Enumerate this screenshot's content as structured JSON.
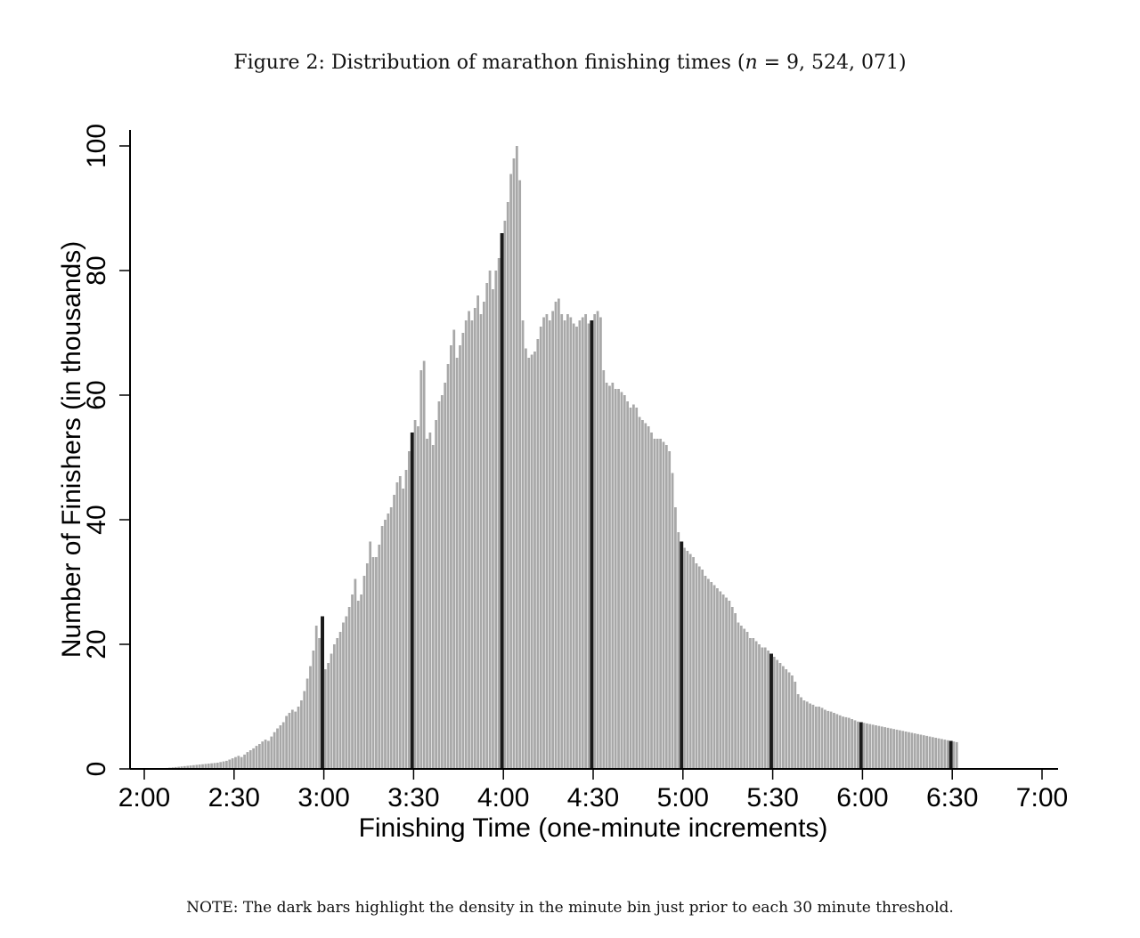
{
  "figure": {
    "title_prefix": "Figure 2: Distribution of marathon finishing times (",
    "title_math": "n",
    "title_suffix": " = 9, 524, 071)",
    "note": "NOTE: The dark bars highlight the density in the minute bin just prior to each 30 minute threshold."
  },
  "chart_data": {
    "type": "bar",
    "title": "Figure 2: Distribution of marathon finishing times (n = 9,524,071)",
    "xlabel": "Finishing Time (one-minute increments)",
    "ylabel": "Number of Finishers (in thousands)",
    "x_start_minutes": 120,
    "x_tick_labels": [
      "2:00",
      "2:30",
      "3:00",
      "3:30",
      "4:00",
      "4:30",
      "5:00",
      "5:30",
      "6:00",
      "6:30",
      "7:00"
    ],
    "y_ticks": [
      0,
      20,
      40,
      60,
      80,
      100
    ],
    "ylim": [
      0,
      100
    ],
    "grid": false,
    "colors": {
      "bar": "#a8a8a8",
      "highlight": "#1a1a1a"
    },
    "highlight_note": "dark bars = minute bin just prior to each 30 minute threshold",
    "values": [
      0.05,
      0.05,
      0.06,
      0.07,
      0.08,
      0.1,
      0.12,
      0.15,
      0.2,
      0.25,
      0.3,
      0.35,
      0.4,
      0.45,
      0.5,
      0.55,
      0.6,
      0.65,
      0.7,
      0.75,
      0.8,
      0.85,
      0.9,
      0.95,
      1.0,
      1.1,
      1.2,
      1.3,
      1.5,
      1.7,
      1.9,
      2.1,
      1.9,
      2.3,
      2.7,
      3.0,
      3.3,
      3.7,
      4.0,
      4.4,
      4.7,
      4.5,
      5.2,
      5.9,
      6.5,
      7.0,
      7.5,
      8.5,
      9.0,
      9.5,
      9.2,
      10.0,
      11.0,
      12.5,
      14.5,
      16.5,
      19.0,
      23.0,
      21.0,
      24.5,
      16.0,
      17.0,
      18.5,
      20.0,
      21.0,
      22.0,
      23.5,
      24.5,
      26.0,
      28.0,
      30.5,
      27.0,
      28.0,
      31.0,
      33.0,
      36.5,
      34.0,
      34.0,
      36.0,
      39.0,
      40.0,
      41.0,
      42.0,
      44.0,
      46.0,
      47.0,
      45.0,
      48.0,
      51.0,
      54.0,
      56.0,
      55.0,
      64.0,
      65.5,
      53.0,
      54.0,
      52.0,
      56.0,
      59.0,
      60.0,
      62.0,
      65.0,
      68.0,
      70.5,
      66.0,
      68.0,
      70.0,
      72.0,
      73.5,
      72.0,
      74.0,
      76.0,
      73.0,
      75.0,
      78.0,
      80.0,
      77.0,
      80.0,
      82.0,
      86.0,
      88.0,
      91.0,
      95.5,
      98.0,
      100.0,
      94.5,
      72.0,
      67.5,
      66.0,
      66.5,
      67.0,
      69.0,
      71.0,
      72.5,
      73.0,
      72.0,
      73.5,
      75.0,
      75.5,
      73.0,
      72.0,
      73.0,
      72.5,
      71.5,
      71.0,
      72.0,
      72.5,
      73.0,
      71.5,
      72.0,
      73.0,
      73.5,
      72.5,
      64.0,
      62.0,
      61.5,
      62.0,
      61.0,
      61.0,
      60.5,
      60.0,
      59.0,
      58.0,
      58.5,
      58.0,
      56.5,
      56.0,
      55.5,
      55.0,
      54.0,
      53.0,
      53.0,
      53.0,
      52.5,
      52.0,
      51.0,
      47.5,
      42.0,
      38.0,
      36.5,
      35.5,
      35.0,
      34.5,
      34.0,
      33.0,
      32.5,
      32.0,
      31.0,
      30.5,
      30.0,
      29.5,
      29.0,
      28.5,
      28.0,
      27.5,
      27.0,
      26.0,
      25.0,
      23.5,
      23.0,
      22.5,
      22.0,
      21.0,
      21.0,
      20.5,
      20.0,
      19.5,
      19.5,
      19.0,
      18.5,
      18.0,
      17.5,
      17.0,
      16.5,
      16.0,
      15.5,
      15.0,
      14.0,
      12.0,
      11.5,
      11.0,
      10.8,
      10.5,
      10.3,
      10.0,
      10.0,
      9.8,
      9.5,
      9.3,
      9.2,
      9.0,
      8.8,
      8.6,
      8.4,
      8.3,
      8.2,
      8.0,
      7.8,
      7.6,
      7.5,
      7.4,
      7.3,
      7.2,
      7.1,
      7.0,
      6.9,
      6.8,
      6.7,
      6.6,
      6.5,
      6.4,
      6.3,
      6.2,
      6.1,
      6.0,
      5.9,
      5.8,
      5.7,
      5.6,
      5.5,
      5.4,
      5.3,
      5.2,
      5.1,
      5.0,
      4.9,
      4.8,
      4.7,
      4.6,
      4.5,
      4.4,
      4.3
    ],
    "highlight_indices": [
      59,
      89,
      119,
      149,
      179,
      209,
      239,
      269
    ]
  }
}
